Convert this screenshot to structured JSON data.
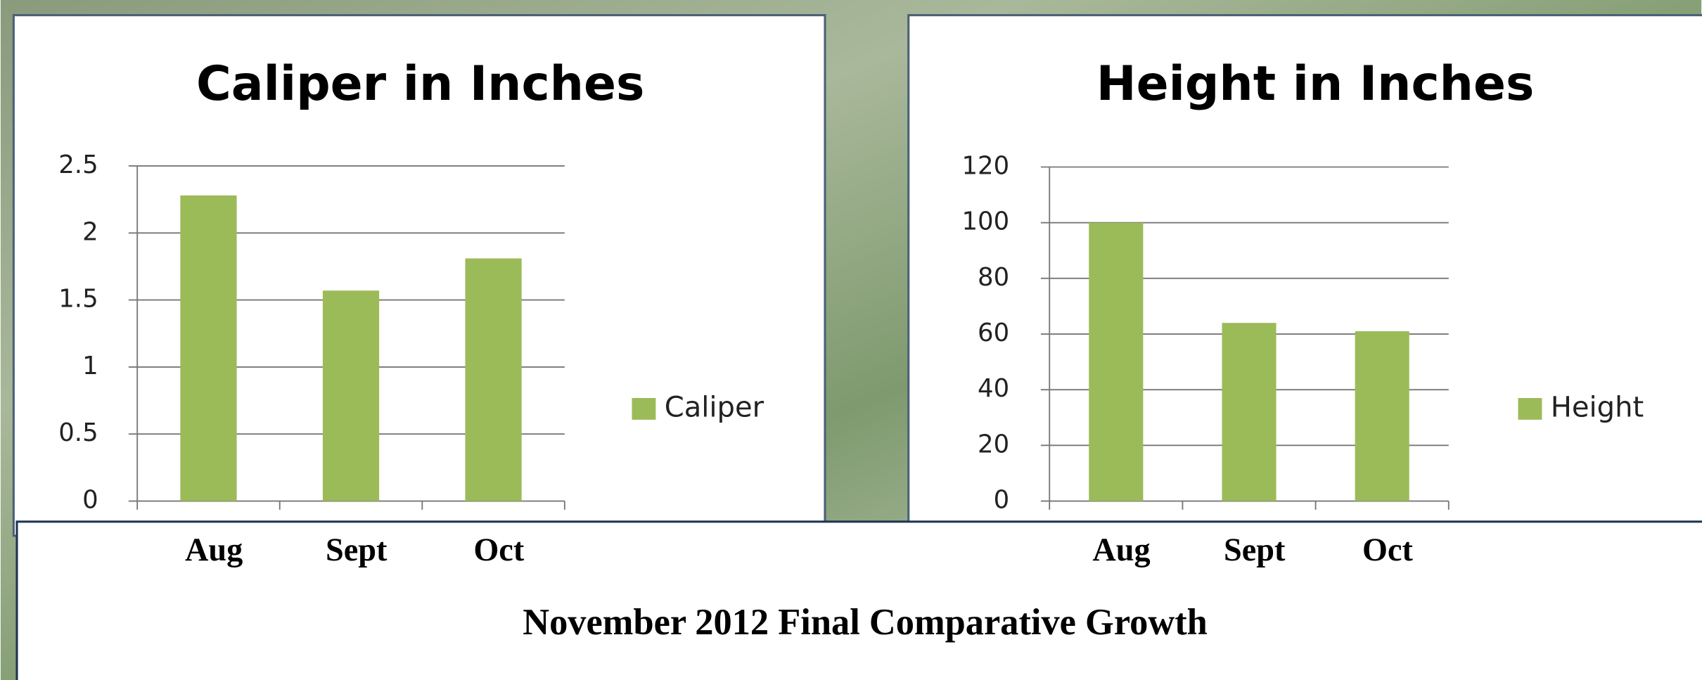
{
  "chart_data": [
    {
      "type": "bar",
      "title": "Caliper in Inches",
      "categories": [
        "Aug",
        "Sept",
        "Oct"
      ],
      "series": [
        {
          "name": "Caliper",
          "color": "#9bbb59",
          "values": [
            2.28,
            1.57,
            1.81
          ]
        }
      ],
      "ylim": [
        0,
        2.5
      ],
      "yticks": [
        0,
        0.5,
        1,
        1.5,
        2,
        2.5
      ],
      "grid": true,
      "legend": "right"
    },
    {
      "type": "bar",
      "title": "Height in Inches",
      "categories": [
        "Aug",
        "Sept",
        "Oct"
      ],
      "series": [
        {
          "name": "Height",
          "color": "#9bbb59",
          "values": [
            100,
            64,
            61
          ]
        }
      ],
      "ylim": [
        0,
        120
      ],
      "yticks": [
        0,
        20,
        40,
        60,
        80,
        100,
        120
      ],
      "grid": true,
      "legend": "right"
    }
  ],
  "caption": "November 2012 Final Comparative Growth"
}
